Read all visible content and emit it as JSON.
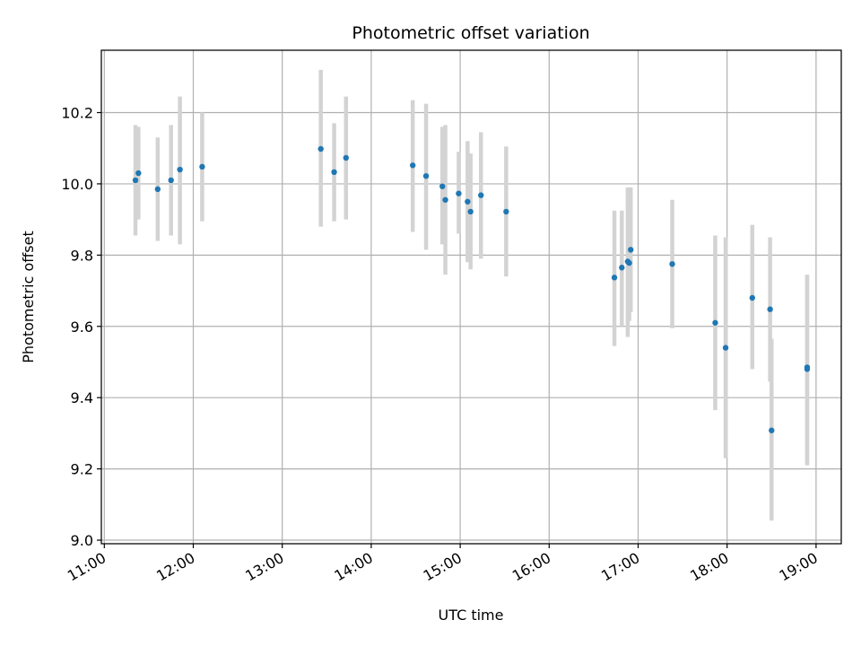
{
  "chart_data": {
    "type": "scatter",
    "title": "Photometric offset variation",
    "xlabel": "UTC time",
    "ylabel": "Photometric offset",
    "x_unit": "UTC time of day (HH:MM)",
    "xlim": [
      "10:58",
      "19:17"
    ],
    "ylim": [
      8.99,
      10.375
    ],
    "grid": true,
    "x_ticks": [
      "11:00",
      "12:00",
      "13:00",
      "14:00",
      "15:00",
      "16:00",
      "17:00",
      "18:00",
      "19:00"
    ],
    "y_ticks": [
      "9.0",
      "9.2",
      "9.4",
      "9.6",
      "9.8",
      "10.0",
      "10.2"
    ],
    "y_tick_values": [
      9.0,
      9.2,
      9.4,
      9.6,
      9.8,
      10.0,
      10.2
    ],
    "colors": {
      "marker": "#1f77b4",
      "errorbar": "#d3d3d3",
      "grid": "#b0b0b0"
    },
    "series": [
      {
        "points": [
          {
            "x": "11:21",
            "y": 10.01,
            "lo": 9.855,
            "hi": 10.165
          },
          {
            "x": "11:23",
            "y": 10.03,
            "lo": 9.9,
            "hi": 10.16
          },
          {
            "x": "11:36",
            "y": 9.985,
            "lo": 9.84,
            "hi": 10.13
          },
          {
            "x": "11:45",
            "y": 10.01,
            "lo": 9.855,
            "hi": 10.165
          },
          {
            "x": "11:51",
            "y": 10.04,
            "lo": 9.83,
            "hi": 10.245
          },
          {
            "x": "12:06",
            "y": 10.048,
            "lo": 9.895,
            "hi": 10.2
          },
          {
            "x": "13:26",
            "y": 10.098,
            "lo": 9.88,
            "hi": 10.32
          },
          {
            "x": "13:35",
            "y": 10.033,
            "lo": 9.895,
            "hi": 10.17
          },
          {
            "x": "13:43",
            "y": 10.073,
            "lo": 9.9,
            "hi": 10.245
          },
          {
            "x": "14:28",
            "y": 10.052,
            "lo": 9.865,
            "hi": 10.235
          },
          {
            "x": "14:37",
            "y": 10.022,
            "lo": 9.815,
            "hi": 10.225
          },
          {
            "x": "14:48",
            "y": 9.993,
            "lo": 9.83,
            "hi": 10.16
          },
          {
            "x": "14:50",
            "y": 9.955,
            "lo": 9.745,
            "hi": 10.165
          },
          {
            "x": "14:59",
            "y": 9.973,
            "lo": 9.86,
            "hi": 10.09
          },
          {
            "x": "15:05",
            "y": 9.95,
            "lo": 9.78,
            "hi": 10.12
          },
          {
            "x": "15:07",
            "y": 9.922,
            "lo": 9.76,
            "hi": 10.085
          },
          {
            "x": "15:14",
            "y": 9.968,
            "lo": 9.79,
            "hi": 10.145
          },
          {
            "x": "15:31",
            "y": 9.922,
            "lo": 9.74,
            "hi": 10.105
          },
          {
            "x": "16:44",
            "y": 9.737,
            "lo": 9.545,
            "hi": 9.925
          },
          {
            "x": "16:49",
            "y": 9.765,
            "lo": 9.6,
            "hi": 9.925
          },
          {
            "x": "16:53",
            "y": 9.782,
            "lo": 9.57,
            "hi": 9.99
          },
          {
            "x": "16:54",
            "y": 9.778,
            "lo": 9.615,
            "hi": 9.99
          },
          {
            "x": "16:55",
            "y": 9.815,
            "lo": 9.64,
            "hi": 9.99
          },
          {
            "x": "17:23",
            "y": 9.775,
            "lo": 9.595,
            "hi": 9.955
          },
          {
            "x": "17:52",
            "y": 9.61,
            "lo": 9.365,
            "hi": 9.855
          },
          {
            "x": "17:59",
            "y": 9.54,
            "lo": 9.23,
            "hi": 9.85
          },
          {
            "x": "18:17",
            "y": 9.68,
            "lo": 9.48,
            "hi": 9.885
          },
          {
            "x": "18:29",
            "y": 9.648,
            "lo": 9.445,
            "hi": 9.85
          },
          {
            "x": "18:30",
            "y": 9.308,
            "lo": 9.055,
            "hi": 9.565
          },
          {
            "x": "18:54",
            "y": 9.48,
            "lo": 9.215,
            "hi": 9.745
          },
          {
            "x": "18:54",
            "y": 9.485,
            "lo": 9.21,
            "hi": 9.74
          }
        ]
      }
    ]
  }
}
